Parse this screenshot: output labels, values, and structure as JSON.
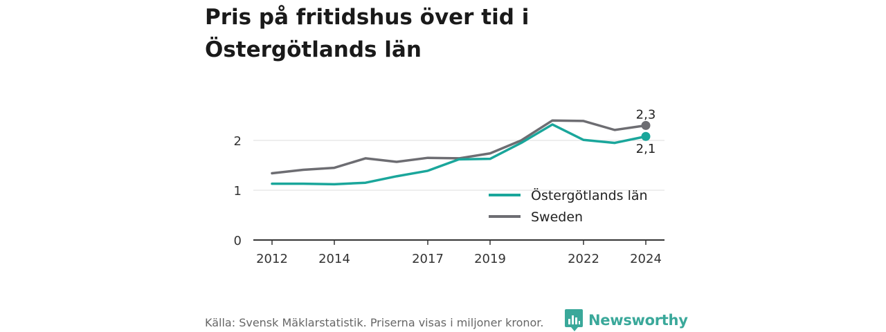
{
  "title": "Pris på fritidshus över tid i Östergötlands län",
  "source": "Källa: Svensk Mäklarstatistik. Priserna visas i miljoner kronor.",
  "brand": {
    "name": "Newsworthy",
    "logo_icon": "newsworthy-logo-icon",
    "color": "#3aa89a"
  },
  "chart_data": {
    "type": "line",
    "x": [
      2012,
      2013,
      2014,
      2015,
      2016,
      2017,
      2018,
      2019,
      2020,
      2021,
      2022,
      2023,
      2024
    ],
    "x_ticks": [
      "2012",
      "2014",
      "2017",
      "2019",
      "2022",
      "2024"
    ],
    "y_ticks": [
      "0",
      "1",
      "2"
    ],
    "ylim": [
      0,
      2.5
    ],
    "grid": "horizontal",
    "legend_position": "bottom-right",
    "series": [
      {
        "name": "Östergötlands län",
        "color": "#1aa69b",
        "values": [
          1.13,
          1.13,
          1.12,
          1.15,
          1.28,
          1.39,
          1.62,
          1.63,
          1.95,
          2.32,
          2.01,
          1.95,
          2.08
        ],
        "end_label": "2,1"
      },
      {
        "name": "Sweden",
        "color": "#6d6d72",
        "values": [
          1.34,
          1.41,
          1.45,
          1.64,
          1.57,
          1.65,
          1.64,
          1.74,
          2.0,
          2.4,
          2.39,
          2.21,
          2.3
        ],
        "end_label": "2,3"
      }
    ]
  }
}
